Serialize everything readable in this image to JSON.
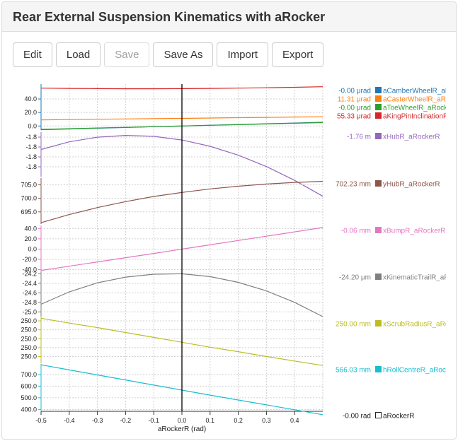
{
  "title": "Rear External Suspension Kinematics with aRocker",
  "toolbar": {
    "edit": "Edit",
    "load": "Load",
    "save": "Save",
    "save_as": "Save As",
    "import": "Import",
    "export": "Export"
  },
  "chart_data": {
    "type": "line",
    "xlabel": "aRockerR (rad)",
    "xlim": [
      -0.5,
      0.5
    ],
    "x_ticks": [
      "-0.5",
      "-0.4",
      "-0.3",
      "-0.2",
      "-0.1",
      "0.0",
      "0.1",
      "0.2",
      "0.3",
      "0.4"
    ],
    "x": [
      -0.5,
      -0.4,
      -0.3,
      -0.2,
      -0.1,
      0.0,
      0.1,
      0.2,
      0.3,
      0.4,
      0.5
    ],
    "cursor_x": 0.0,
    "cursor_value": "-0.00",
    "cursor_unit": "rad",
    "cursor_name": "aRockerR",
    "grid": true,
    "panels": [
      {
        "ylim": [
          -6,
          62
        ],
        "y_ticks": [
          {
            "v": 40,
            "t": "40.0"
          },
          {
            "v": 20,
            "t": "20.0"
          },
          {
            "v": 0,
            "t": "0.0"
          }
        ],
        "series": [
          {
            "name": "aCamberWheelR_aRocker",
            "color": "#1f77b4",
            "value": "-0.00",
            "unit": "μrad",
            "values": [
              -5.5,
              -4.4,
              -3.3,
              -2.2,
              -1.1,
              0.0,
              1.1,
              2.2,
              3.3,
              4.4,
              5.5
            ]
          },
          {
            "name": "aCasterWheelR_aRocker",
            "color": "#ff7f0e",
            "value": "11.31",
            "unit": "μrad",
            "values": [
              9.1,
              9.5,
              10.0,
              10.4,
              10.9,
              11.3,
              11.8,
              12.3,
              12.7,
              13.2,
              13.7
            ]
          },
          {
            "name": "aToeWheelR_aRocker",
            "color": "#2ca02c",
            "value": "-0.00",
            "unit": "μrad",
            "values": [
              -5.0,
              -4.0,
              -3.0,
              -2.0,
              -1.0,
              0.0,
              1.0,
              2.0,
              3.0,
              4.0,
              5.0
            ]
          },
          {
            "name": "aKingPinInclinationR_aRocker",
            "color": "#d62728",
            "value": "55.33",
            "unit": "μrad",
            "values": [
              56.0,
              55.6,
              55.3,
              55.1,
              55.1,
              55.3,
              55.6,
              56.0,
              56.6,
              57.3,
              58.1
            ]
          }
        ]
      },
      {
        "ylim": [
          -1.8,
          -1.755
        ],
        "y_ticks": [
          {
            "v": -1.76,
            "t": "-1.8"
          },
          {
            "v": -1.77,
            "t": "-1.8"
          },
          {
            "v": -1.78,
            "t": "-1.8"
          },
          {
            "v": -1.79,
            "t": "-1.8"
          }
        ],
        "series": [
          {
            "name": "xHubR_aRockerR",
            "color": "#9467bd",
            "value": "-1.76",
            "unit": "m",
            "values": [
              -1.7725,
              -1.7648,
              -1.7601,
              -1.7583,
              -1.7592,
              -1.7629,
              -1.7693,
              -1.7783,
              -1.7898,
              -1.8037,
              -1.8198
            ]
          }
        ]
      },
      {
        "ylim": [
          690.5,
          707.5
        ],
        "y_ticks": [
          {
            "v": 705,
            "t": "705.0"
          },
          {
            "v": 700,
            "t": "700.0"
          },
          {
            "v": 695,
            "t": "695.0"
          }
        ],
        "series": [
          {
            "name": "yHubR_aRockerR",
            "color": "#8c564b",
            "value": "702.23",
            "unit": "mm",
            "values": [
              691.0,
              694.0,
              696.6,
              698.8,
              700.7,
              702.2,
              703.5,
              704.5,
              705.3,
              705.9,
              706.3
            ]
          }
        ]
      },
      {
        "ylim": [
          -42,
          46
        ],
        "y_ticks": [
          {
            "v": 40,
            "t": "40.0"
          },
          {
            "v": 20,
            "t": "20.0"
          },
          {
            "v": 0,
            "t": "0.0"
          },
          {
            "v": -20,
            "t": "-20.0"
          },
          {
            "v": -40,
            "t": "-40.0"
          }
        ],
        "series": [
          {
            "name": "xBumpR_aRockerR",
            "color": "#e377c2",
            "value": "-0.06",
            "unit": "mm",
            "values": [
              -41.5,
              -33.3,
              -25.0,
              -16.7,
              -8.4,
              -0.06,
              8.3,
              16.7,
              25.1,
              33.5,
              42.0
            ]
          }
        ]
      },
      {
        "ylim": [
          -25.1,
          -24.15
        ],
        "y_ticks": [
          {
            "v": -24.2,
            "t": "-24.2"
          },
          {
            "v": -24.4,
            "t": "-24.4"
          },
          {
            "v": -24.6,
            "t": "-24.6"
          },
          {
            "v": -24.8,
            "t": "-24.8"
          },
          {
            "v": -25.0,
            "t": "-25.0"
          }
        ],
        "series": [
          {
            "name": "xKinematicTrailR_aRockerR",
            "color": "#7f7f7f",
            "value": "-24.20",
            "unit": "μm",
            "values": [
              -24.84,
              -24.58,
              -24.39,
              -24.27,
              -24.21,
              -24.2,
              -24.26,
              -24.38,
              -24.56,
              -24.8,
              -25.1
            ]
          }
        ]
      },
      {
        "ylim": [
          249.955,
          250.058
        ],
        "y_ticks": [
          {
            "v": 250.05,
            "t": "250.0"
          },
          {
            "v": 250.03,
            "t": "250.0"
          },
          {
            "v": 250.01,
            "t": "250.0"
          },
          {
            "v": 249.99,
            "t": "250.0"
          },
          {
            "v": 249.97,
            "t": "250.0"
          }
        ],
        "series": [
          {
            "name": "xScrubRadiusR_aRockerR",
            "color": "#bcbd22",
            "value": "250.00",
            "unit": "mm",
            "values": [
              250.056,
              250.045,
              250.035,
              250.024,
              250.013,
              250.002,
              249.991,
              249.981,
              249.97,
              249.96,
              249.95
            ]
          }
        ]
      },
      {
        "ylim": [
          390,
          790
        ],
        "y_ticks": [
          {
            "v": 700,
            "t": "700.0"
          },
          {
            "v": 600,
            "t": "600.0"
          },
          {
            "v": 500,
            "t": "500.0"
          },
          {
            "v": 400,
            "t": "400.0"
          }
        ],
        "series": [
          {
            "name": "hRollCentreR_aRockerR",
            "color": "#17becf",
            "value": "566.03",
            "unit": "mm",
            "values": [
              783,
              739,
              696,
              653,
              609,
              566,
              523,
              481,
              439,
              397,
              355
            ]
          }
        ]
      }
    ]
  }
}
